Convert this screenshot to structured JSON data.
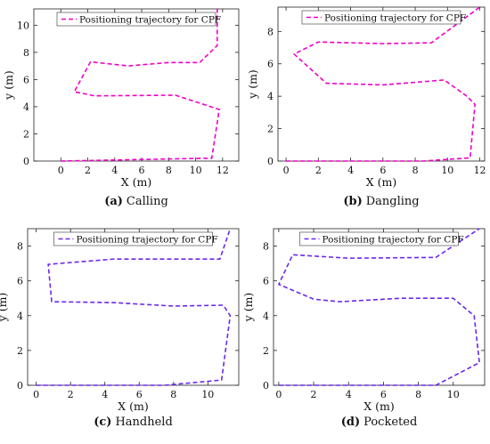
{
  "chart_data": [
    {
      "type": "line",
      "caption_letter": "(a)",
      "caption_text": "Calling",
      "xlabel": "X (m)",
      "ylabel": "y (m)",
      "xlim": [
        -2,
        13.2
      ],
      "ylim": [
        0,
        11.2
      ],
      "xticks": [
        0,
        2,
        4,
        6,
        8,
        10,
        12
      ],
      "yticks": [
        0,
        2,
        4,
        6,
        8,
        10
      ],
      "legend_position": "top",
      "series": [
        {
          "name": "Positioning trajectory for CPF",
          "color": "#f000c8",
          "points": [
            [
              0,
              0
            ],
            [
              10.6,
              0.2
            ],
            [
              11.2,
              0.2
            ],
            [
              11.75,
              3.8
            ],
            [
              8.5,
              4.85
            ],
            [
              2.5,
              4.8
            ],
            [
              1.0,
              5.1
            ],
            [
              2.2,
              7.3
            ],
            [
              5.0,
              7.0
            ],
            [
              8.0,
              7.25
            ],
            [
              10.3,
              7.25
            ],
            [
              11.6,
              8.5
            ],
            [
              11.6,
              11.2
            ]
          ]
        }
      ]
    },
    {
      "type": "line",
      "caption_letter": "(b)",
      "caption_text": "Dangling",
      "xlabel": "X (m)",
      "ylabel": "y (m)",
      "xlim": [
        -0.5,
        12.3
      ],
      "ylim": [
        0,
        9.5
      ],
      "xticks": [
        0,
        2,
        4,
        6,
        8,
        10,
        12
      ],
      "yticks": [
        0,
        2,
        4,
        6,
        8
      ],
      "legend_position": "top",
      "series": [
        {
          "name": "Positioning trajectory for CPF",
          "color": "#f000c8",
          "points": [
            [
              0,
              0
            ],
            [
              8.5,
              0
            ],
            [
              11.4,
              0.2
            ],
            [
              11.7,
              3.5
            ],
            [
              11.2,
              4.0
            ],
            [
              9.8,
              5.0
            ],
            [
              6.0,
              4.7
            ],
            [
              2.5,
              4.8
            ],
            [
              0.5,
              6.6
            ],
            [
              2.0,
              7.35
            ],
            [
              6.0,
              7.25
            ],
            [
              9.0,
              7.3
            ],
            [
              12.0,
              9.5
            ]
          ]
        }
      ]
    },
    {
      "type": "line",
      "caption_letter": "(c)",
      "caption_text": "Handheld",
      "xlabel": "X (m)",
      "ylabel": "y (m)",
      "xlim": [
        -0.5,
        11.8
      ],
      "ylim": [
        0,
        9.0
      ],
      "xticks": [
        0,
        2,
        4,
        6,
        8,
        10
      ],
      "yticks": [
        0,
        2,
        4,
        6,
        8
      ],
      "legend_position": "top",
      "series": [
        {
          "name": "Positioning trajectory for CPF",
          "color": "#6a28f0",
          "points": [
            [
              0,
              0
            ],
            [
              7.5,
              0
            ],
            [
              10.8,
              0.3
            ],
            [
              11.3,
              4.0
            ],
            [
              10.9,
              4.6
            ],
            [
              8.0,
              4.55
            ],
            [
              4.5,
              4.75
            ],
            [
              0.9,
              4.8
            ],
            [
              0.7,
              6.95
            ],
            [
              4.5,
              7.25
            ],
            [
              10.7,
              7.25
            ],
            [
              11.3,
              9.0
            ]
          ]
        }
      ]
    },
    {
      "type": "line",
      "caption_letter": "(d)",
      "caption_text": "Pocketed",
      "xlabel": "X (m)",
      "ylabel": "y (m)",
      "xlim": [
        -0.3,
        11.8
      ],
      "ylim": [
        0,
        9.0
      ],
      "xticks": [
        0,
        2,
        4,
        6,
        8,
        10
      ],
      "yticks": [
        0,
        2,
        4,
        6,
        8
      ],
      "legend_position": "top",
      "series": [
        {
          "name": "Positioning trajectory for CPF",
          "color": "#6a28f0",
          "points": [
            [
              0,
              0
            ],
            [
              9.0,
              0
            ],
            [
              11.5,
              1.3
            ],
            [
              11.2,
              4.0
            ],
            [
              10.0,
              5.0
            ],
            [
              7.0,
              5.0
            ],
            [
              3.5,
              4.8
            ],
            [
              2.0,
              4.95
            ],
            [
              0.0,
              5.8
            ],
            [
              0.8,
              7.5
            ],
            [
              4.0,
              7.3
            ],
            [
              9.0,
              7.35
            ],
            [
              11.5,
              9.0
            ]
          ]
        }
      ]
    }
  ]
}
